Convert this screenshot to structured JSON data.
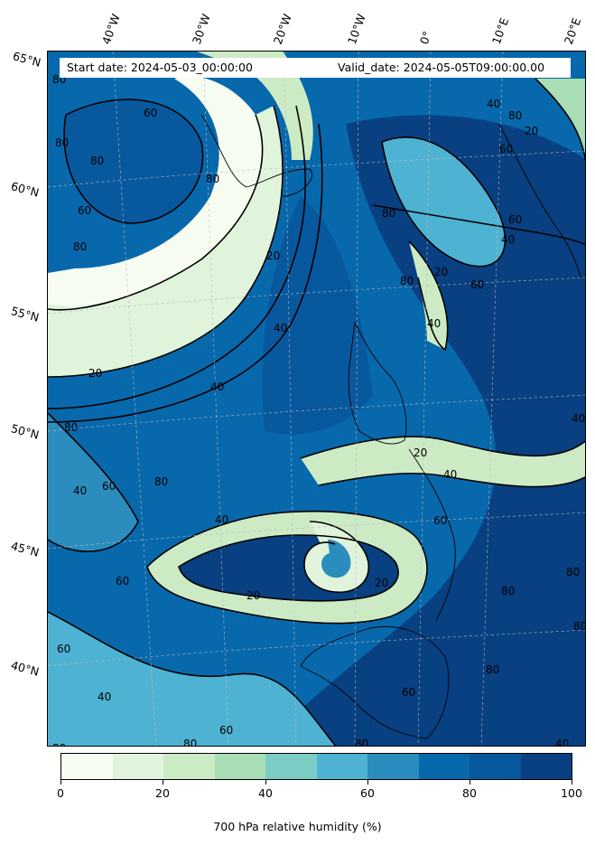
{
  "header": {
    "start_date": "Start date: 2024-05-03_00:00:00",
    "valid_date": "Valid_date: 2024-05-05T09:00:00.00"
  },
  "longitude_labels": [
    "40°W",
    "30°W",
    "20°W",
    "10°W",
    "0°",
    "10°E",
    "20°E"
  ],
  "latitude_labels": [
    "65°N",
    "60°N",
    "55°N",
    "50°N",
    "45°N",
    "40°N"
  ],
  "colorbar": {
    "ticks": [
      "0",
      "20",
      "40",
      "60",
      "80",
      "100"
    ],
    "colors": [
      "#f7fcf0",
      "#e0f3db",
      "#ccebc5",
      "#a8ddb5",
      "#7bccc4",
      "#4eb3d3",
      "#2b8cbe",
      "#0868ac",
      "#08589e",
      "#084081"
    ],
    "label": "700 hPa relative humidity (%)"
  },
  "contour_levels_shown": [
    "20",
    "40",
    "60",
    "80"
  ],
  "contour_labels": [
    "80",
    "60",
    "80",
    "80",
    "60",
    "80",
    "80",
    "20",
    "40",
    "40",
    "20",
    "80",
    "60",
    "40",
    "80",
    "20",
    "40",
    "60",
    "80",
    "60",
    "40",
    "80",
    "20",
    "20",
    "60",
    "40",
    "20",
    "40",
    "60",
    "80",
    "60",
    "40",
    "80",
    "80",
    "20",
    "40",
    "60",
    "80",
    "80",
    "40",
    "60",
    "80",
    "40",
    "80",
    "60",
    "80"
  ]
}
